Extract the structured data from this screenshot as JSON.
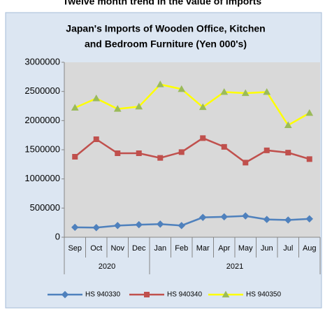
{
  "header": "Twelve month trend in the value of imports",
  "chart_data": {
    "type": "line",
    "title": [
      "Japan's Imports of  Wooden  Office, Kitchen",
      "and Bedroom Furniture (Yen 000's)"
    ],
    "categories": [
      "Sep",
      "Oct",
      "Nov",
      "Dec",
      "Jan",
      "Feb",
      "Mar",
      "Apr",
      "May",
      "Jun",
      "Jul",
      "Aug"
    ],
    "year_groups": [
      {
        "label": "2020",
        "span": 4
      },
      {
        "label": "2021",
        "span": 8
      }
    ],
    "series": [
      {
        "name": "HS 940330",
        "color": "#4f81bd",
        "marker": "diamond",
        "values": [
          170000,
          165000,
          200000,
          215000,
          225000,
          200000,
          340000,
          350000,
          365000,
          305000,
          295000,
          315000
        ]
      },
      {
        "name": "HS 940340",
        "color": "#c0504d",
        "marker": "square",
        "values": [
          1380000,
          1680000,
          1440000,
          1440000,
          1360000,
          1460000,
          1700000,
          1550000,
          1280000,
          1490000,
          1450000,
          1340000
        ]
      },
      {
        "name": "HS 940350",
        "color": "#ffff00",
        "marker": "triangle",
        "values": [
          2220000,
          2380000,
          2200000,
          2240000,
          2620000,
          2540000,
          2230000,
          2490000,
          2470000,
          2490000,
          1920000,
          2130000
        ]
      }
    ],
    "ylim": [
      0,
      3000000
    ],
    "yticks": [
      0,
      500000,
      1000000,
      1500000,
      2000000,
      2500000,
      3000000
    ],
    "legend": "bottom"
  }
}
